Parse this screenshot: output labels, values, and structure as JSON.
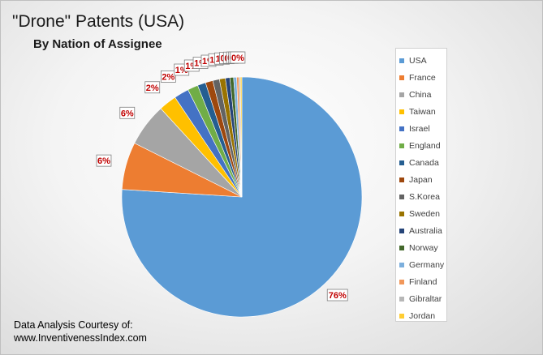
{
  "chart_data": {
    "type": "pie",
    "title": "\"Drone\" Patents (USA)",
    "subtitle": "By Nation of Assignee",
    "slices": [
      {
        "label": "USA",
        "value": 76,
        "display": "76%",
        "color": "#5b9bd5"
      },
      {
        "label": "France",
        "value": 6.4,
        "display": "6%",
        "color": "#ed7d31"
      },
      {
        "label": "China",
        "value": 5.8,
        "display": "6%",
        "color": "#a5a5a5"
      },
      {
        "label": "Taiwan",
        "value": 2.4,
        "display": "2%",
        "color": "#ffc000"
      },
      {
        "label": "Israel",
        "value": 2.0,
        "display": "2%",
        "color": "#4472c4"
      },
      {
        "label": "England",
        "value": 1.4,
        "display": "1%",
        "color": "#70ad47"
      },
      {
        "label": "Canada",
        "value": 1.1,
        "display": "1%",
        "color": "#255e91"
      },
      {
        "label": "Japan",
        "value": 1.0,
        "display": "1%",
        "color": "#9e480e"
      },
      {
        "label": "S.Korea",
        "value": 0.9,
        "display": "1%",
        "color": "#636363"
      },
      {
        "label": "Sweden",
        "value": 0.8,
        "display": "1%",
        "color": "#997300"
      },
      {
        "label": "Australia",
        "value": 0.6,
        "display": "1%",
        "color": "#264478"
      },
      {
        "label": "Norway",
        "value": 0.5,
        "display": "0%",
        "color": "#43682b"
      },
      {
        "label": "Germany",
        "value": 0.4,
        "display": "0%",
        "color": "#7cafdd"
      },
      {
        "label": "Finland",
        "value": 0.3,
        "display": "0%",
        "color": "#f1975a"
      },
      {
        "label": "Gibraltar",
        "value": 0.2,
        "display": "0%",
        "color": "#b7b7b7"
      },
      {
        "label": "Jordan",
        "value": 0.2,
        "display": "0%",
        "color": "#ffcd33"
      }
    ],
    "legend_position": "right"
  },
  "credit": {
    "line1": "Data Analysis Courtesy of:",
    "line2": "www.InventivenessIndex.com"
  }
}
